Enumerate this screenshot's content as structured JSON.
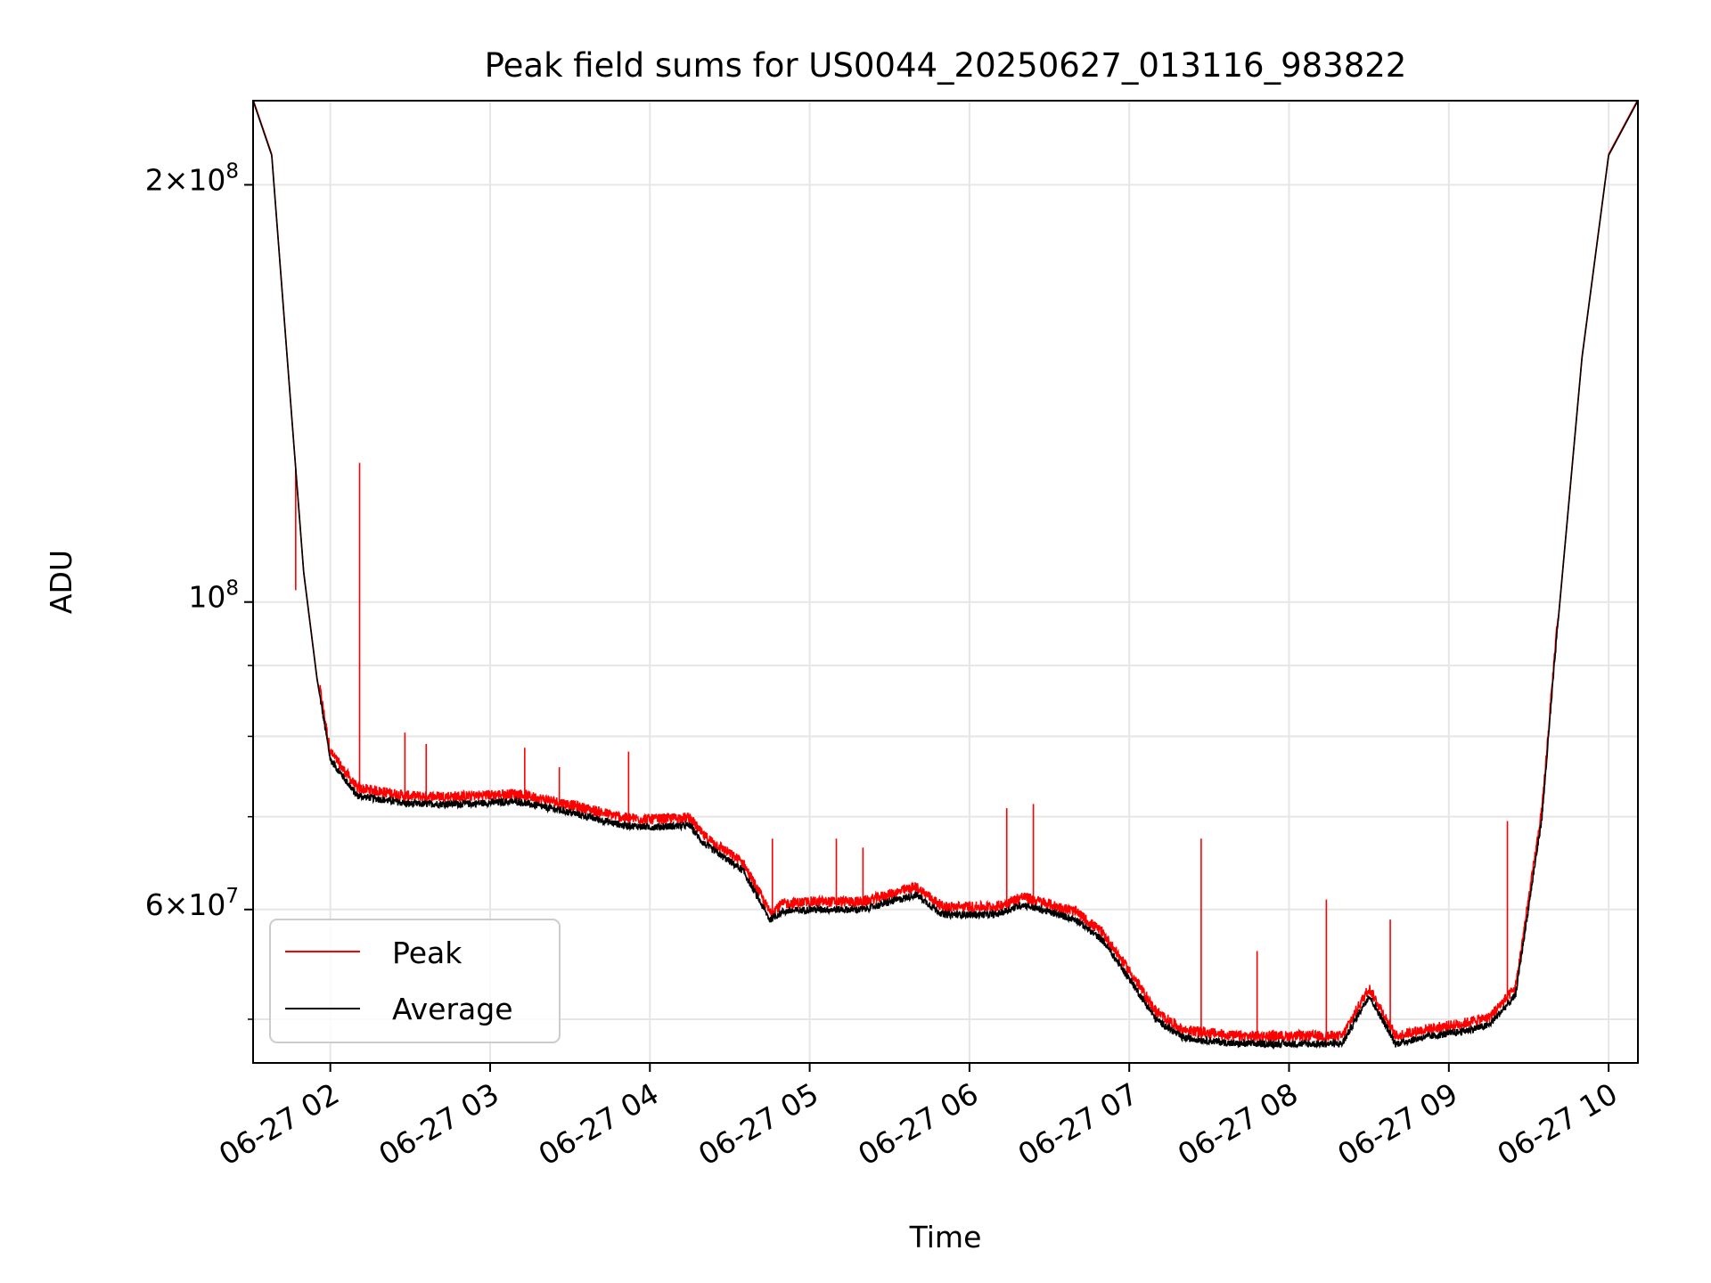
{
  "chart_data": {
    "type": "line",
    "title": "Peak field sums for US0044_20250627_013116_983822",
    "xlabel": "Time",
    "ylabel": "ADU",
    "y_scale": "log",
    "ylim": [
      46500000,
      230000000
    ],
    "xlim": [
      "06-27 01:31",
      "06-27 10:11"
    ],
    "x_ticks": [
      "06-27 02",
      "06-27 03",
      "06-27 04",
      "06-27 05",
      "06-27 06",
      "06-27 07",
      "06-27 08",
      "06-27 09",
      "06-27 10"
    ],
    "y_major_ticks": [
      {
        "value": 60000000,
        "mantissa": "6",
        "exponent": "7"
      },
      {
        "value": 100000000,
        "mantissa": "",
        "exponent": "8"
      },
      {
        "value": 200000000,
        "mantissa": "2",
        "exponent": "8"
      }
    ],
    "y_minor_ticks": [
      50000000,
      70000000,
      80000000,
      90000000
    ],
    "grid": true,
    "legend_position": "lower-left",
    "colors": {
      "peak": "#ff0000",
      "average": "#000000",
      "grid": "#e6e6e6"
    },
    "series": [
      {
        "name": "Average",
        "x": [
          "01:31",
          "01:38",
          "01:45",
          "01:50",
          "01:55",
          "02:00",
          "02:10",
          "02:30",
          "02:50",
          "03:10",
          "03:30",
          "03:50",
          "04:00",
          "04:15",
          "04:20",
          "04:35",
          "04:45",
          "04:50",
          "05:00",
          "05:20",
          "05:40",
          "05:50",
          "06:10",
          "06:20",
          "06:40",
          "06:50",
          "07:00",
          "07:10",
          "07:20",
          "07:40",
          "08:00",
          "08:20",
          "08:25",
          "08:30",
          "08:35",
          "08:40",
          "08:50",
          "09:05",
          "09:15",
          "09:25",
          "09:35",
          "09:40",
          "09:50",
          "10:00",
          "10:11"
        ],
        "y": [
          230000000,
          210000000,
          140000000,
          105000000,
          88000000,
          77000000,
          72500000,
          71500000,
          71500000,
          71800000,
          70500000,
          69000000,
          68800000,
          69000000,
          67000000,
          64000000,
          59000000,
          59800000,
          60000000,
          60000000,
          61500000,
          59500000,
          59500000,
          60500000,
          59000000,
          57000000,
          53500000,
          50000000,
          48500000,
          48000000,
          48000000,
          48000000,
          50000000,
          52000000,
          50000000,
          48000000,
          48500000,
          49000000,
          49500000,
          52000000,
          70000000,
          92000000,
          150000000,
          210000000,
          230000000
        ]
      },
      {
        "name": "Peak",
        "spikes": [
          {
            "x": "01:47",
            "y": 102000000
          },
          {
            "x": "02:11",
            "y": 126000000
          },
          {
            "x": "02:28",
            "y": 80500000
          },
          {
            "x": "02:36",
            "y": 79000000
          },
          {
            "x": "03:13",
            "y": 78500000
          },
          {
            "x": "03:26",
            "y": 76000000
          },
          {
            "x": "03:52",
            "y": 78000000
          },
          {
            "x": "04:46",
            "y": 67500000
          },
          {
            "x": "05:10",
            "y": 67500000
          },
          {
            "x": "05:20",
            "y": 66500000
          },
          {
            "x": "06:14",
            "y": 71000000
          },
          {
            "x": "06:24",
            "y": 71500000
          },
          {
            "x": "07:27",
            "y": 67500000
          },
          {
            "x": "07:48",
            "y": 56000000
          },
          {
            "x": "08:14",
            "y": 61000000
          },
          {
            "x": "08:38",
            "y": 59000000
          },
          {
            "x": "09:22",
            "y": 69500000
          }
        ]
      }
    ]
  }
}
